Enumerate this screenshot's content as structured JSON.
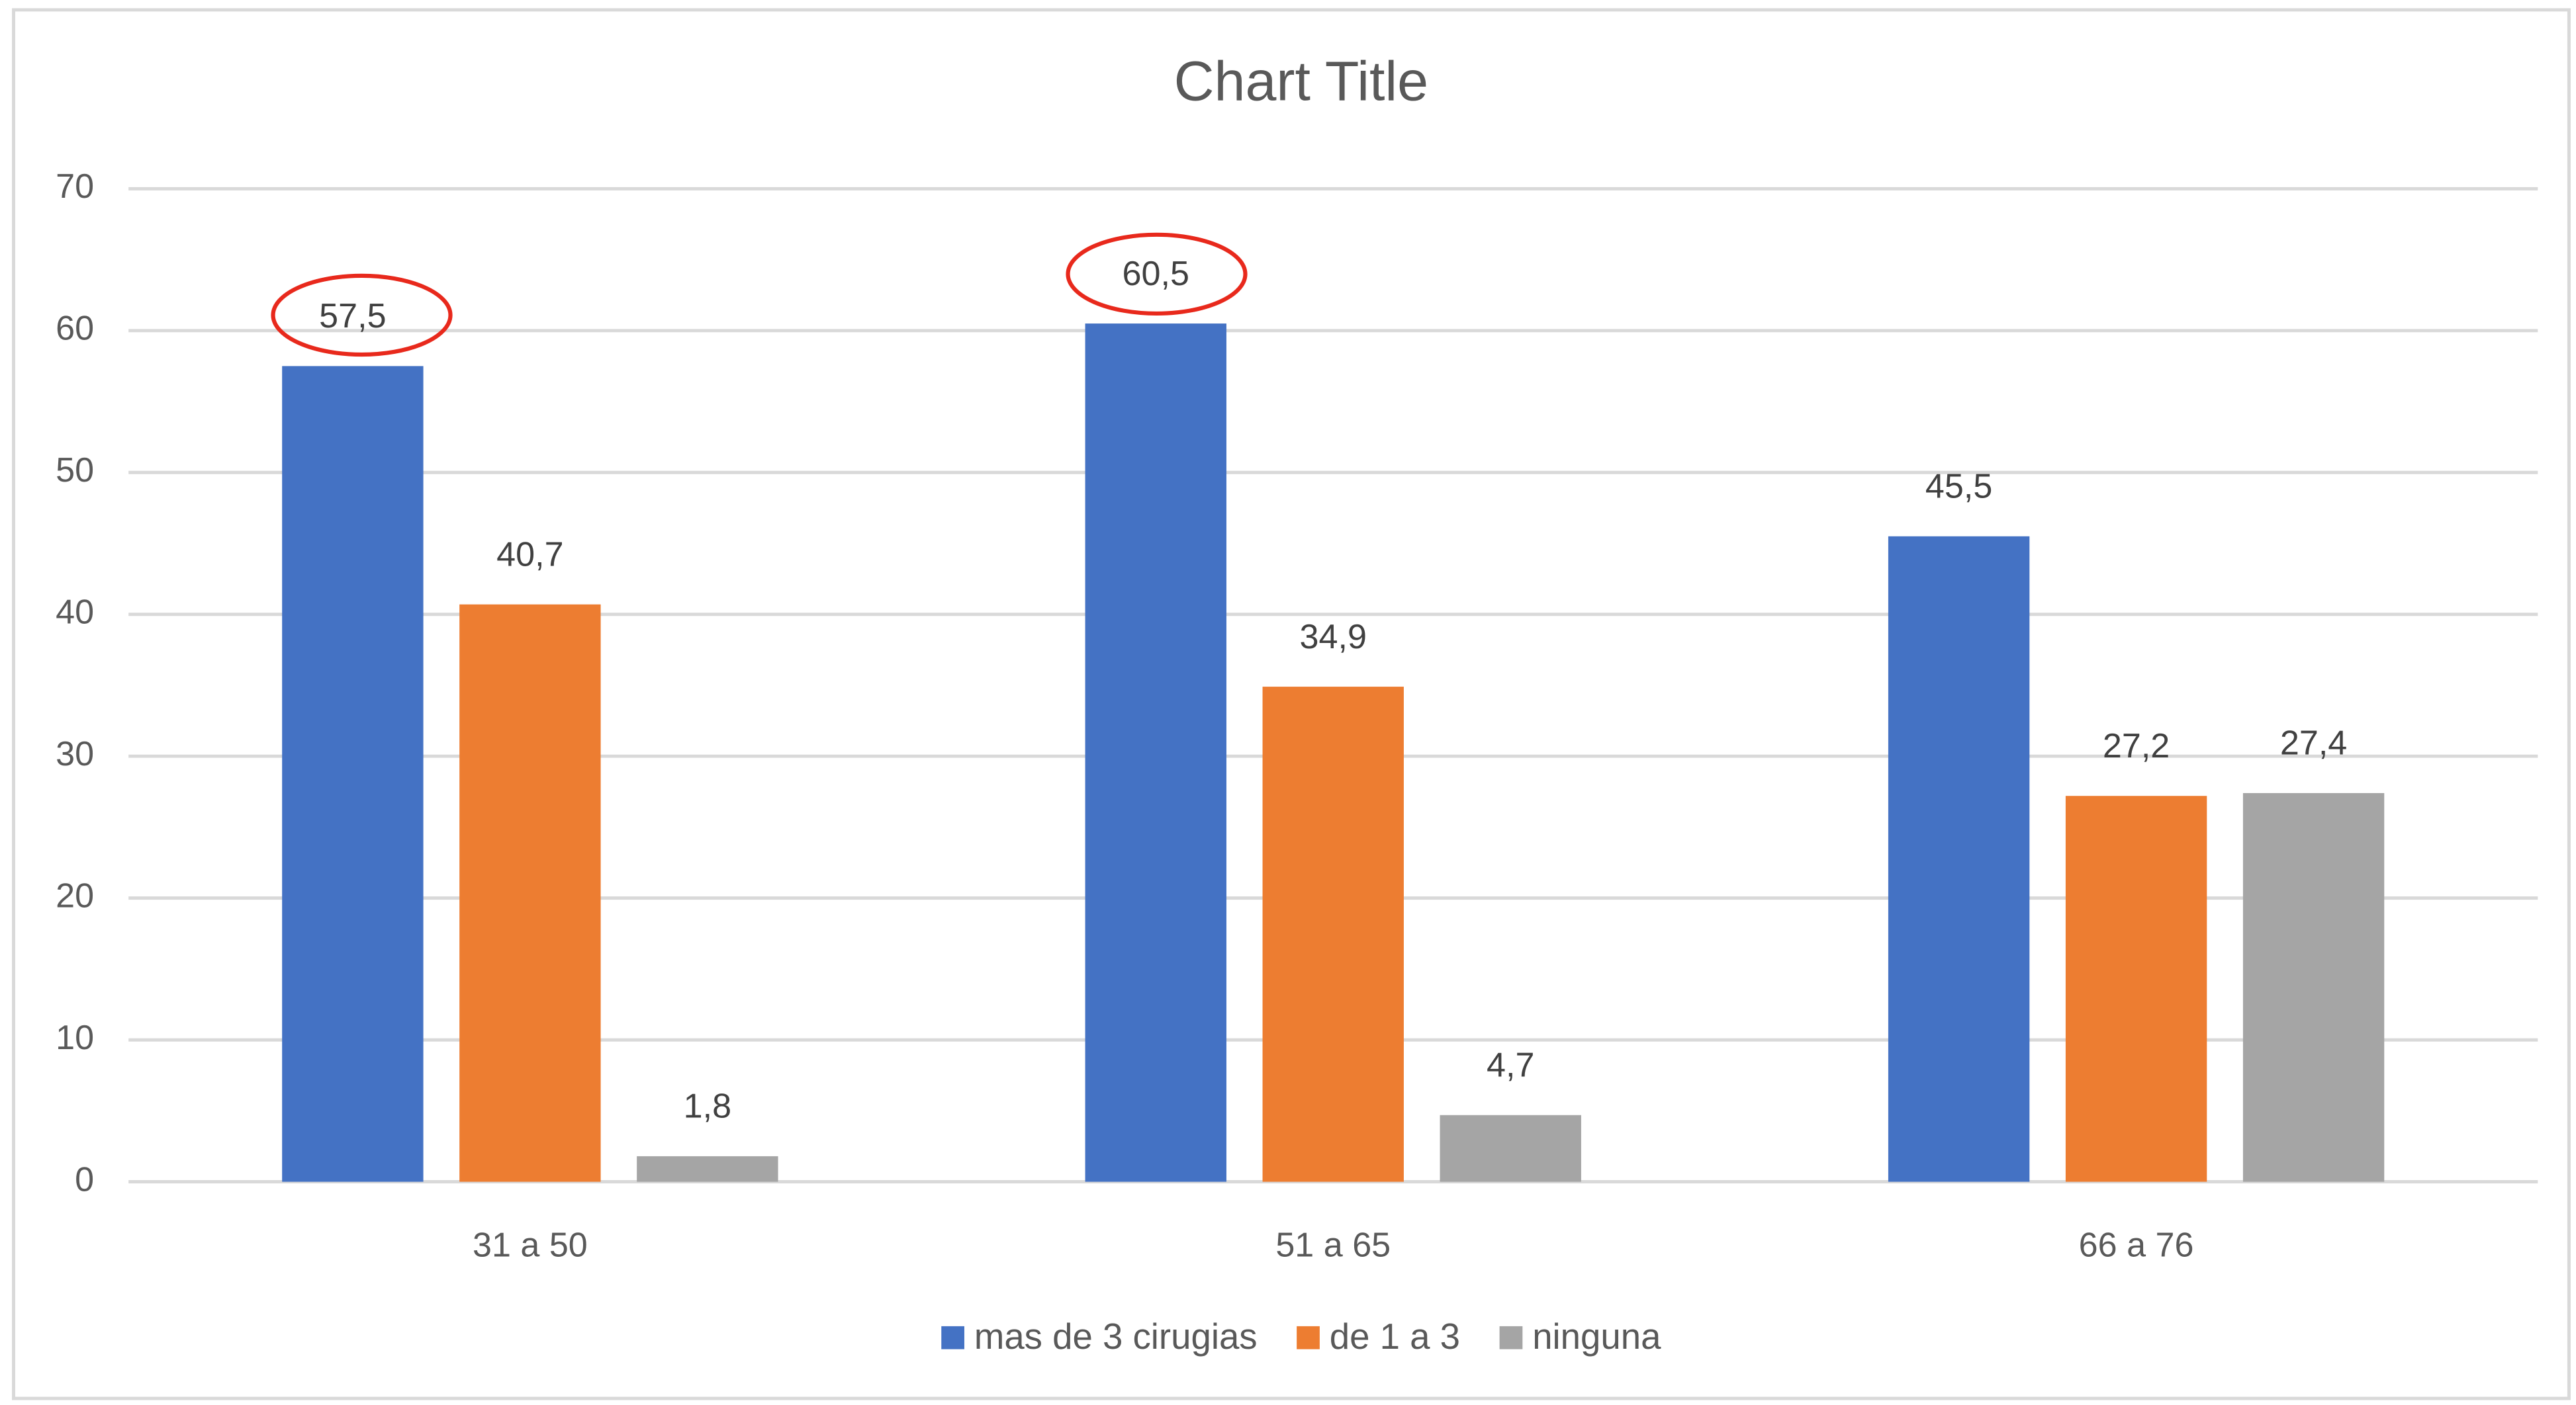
{
  "chart_data": {
    "type": "bar",
    "title": "Chart Title",
    "categories": [
      "31 a 50",
      "51 a 65",
      "66 a 76"
    ],
    "series": [
      {
        "name": "mas de 3 cirugias",
        "color": "#4472c4",
        "values": [
          57.5,
          60.5,
          45.5
        ],
        "value_labels": [
          "57,5",
          "60,5",
          "45,5"
        ]
      },
      {
        "name": "de 1 a 3",
        "color": "#ed7d31",
        "values": [
          40.7,
          34.9,
          27.2
        ],
        "value_labels": [
          "40,7",
          "34,9",
          "27,2"
        ]
      },
      {
        "name": "ninguna",
        "color": "#a5a5a5",
        "values": [
          1.8,
          4.7,
          27.4
        ],
        "value_labels": [
          "1,8",
          "4,7",
          "27,4"
        ]
      }
    ],
    "ylim": [
      0,
      70
    ],
    "yticks": [
      0,
      10,
      20,
      30,
      40,
      50,
      60,
      70
    ],
    "grid": true,
    "legend": "bottom"
  }
}
